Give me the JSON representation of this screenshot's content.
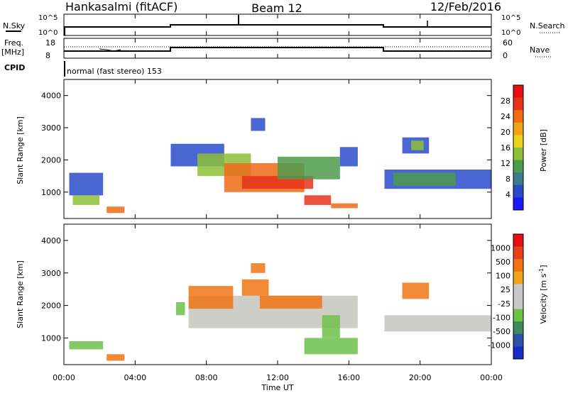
{
  "header": {
    "station": "Hankasalmi (fitACF)",
    "beam": "Beam 12",
    "date": "12/Feb/2016"
  },
  "top_panels": {
    "nsky_label": "N.Sky",
    "nsearch_label": "N.Search",
    "nsky_ticks": [
      "10^5",
      "10^0"
    ],
    "nsearch_ticks": [
      "10^5",
      "10^0"
    ],
    "freq_label": "Freq.",
    "freq_unit": "[MHz]",
    "freq_ticks": [
      "18",
      "8"
    ],
    "nave_label": "Nave",
    "nave_ticks": [
      "60",
      "0"
    ],
    "cpid_label": "CPID",
    "cpid_value": "normal (fast stereo) 153"
  },
  "chart_data": [
    {
      "type": "heatmap",
      "name": "power",
      "ylabel": "Slant Range [km]",
      "xlabel": "",
      "x_ticks": [
        "00:00",
        "04:00",
        "08:00",
        "12:00",
        "16:00",
        "20:00",
        "00:00"
      ],
      "xlim_hours": [
        0,
        24
      ],
      "ylim": [
        180,
        4500
      ],
      "y_ticks": [
        1000,
        2000,
        3000,
        4000
      ],
      "colorbar": {
        "label": "Power [dB]",
        "ticks": [
          "4",
          "8",
          "12",
          "16",
          "20",
          "24",
          "28"
        ],
        "colors": [
          "#1a1aff",
          "#2a4bc8",
          "#3f7a8c",
          "#4e9a4e",
          "#8ebf3a",
          "#e8d21e",
          "#f0a21a",
          "#ef6b16",
          "#e8321a",
          "#e60f14"
        ]
      },
      "colors": {
        "low": "#2a4bc8",
        "mid": "#4e9a4e",
        "mid2": "#8ebf3a",
        "high": "#ef6b16",
        "peak": "#e8321a"
      },
      "regions": [
        {
          "t0": 0.3,
          "t1": 2.2,
          "r0": 900,
          "r1": 1600,
          "level": "low"
        },
        {
          "t0": 0.5,
          "t1": 2.0,
          "r0": 600,
          "r1": 900,
          "level": "mid2"
        },
        {
          "t0": 2.4,
          "t1": 3.4,
          "r0": 350,
          "r1": 550,
          "level": "high"
        },
        {
          "t0": 6.0,
          "t1": 9.0,
          "r0": 1800,
          "r1": 2500,
          "level": "low"
        },
        {
          "t0": 7.5,
          "t1": 10.5,
          "r0": 1500,
          "r1": 2200,
          "level": "mid2"
        },
        {
          "t0": 9.0,
          "t1": 13.5,
          "r0": 1000,
          "r1": 1900,
          "level": "high"
        },
        {
          "t0": 10.0,
          "t1": 14.0,
          "r0": 1100,
          "r1": 1500,
          "level": "peak"
        },
        {
          "t0": 12.0,
          "t1": 15.5,
          "r0": 1400,
          "r1": 2100,
          "level": "mid"
        },
        {
          "t0": 13.5,
          "t1": 15.0,
          "r0": 600,
          "r1": 900,
          "level": "peak"
        },
        {
          "t0": 15.0,
          "t1": 16.5,
          "r0": 500,
          "r1": 650,
          "level": "high"
        },
        {
          "t0": 15.5,
          "t1": 16.5,
          "r0": 1800,
          "r1": 2400,
          "level": "low"
        },
        {
          "t0": 18.0,
          "t1": 24.0,
          "r0": 1100,
          "r1": 1700,
          "level": "low"
        },
        {
          "t0": 18.5,
          "t1": 22.0,
          "r0": 1200,
          "r1": 1600,
          "level": "mid"
        },
        {
          "t0": 10.5,
          "t1": 11.3,
          "r0": 2900,
          "r1": 3300,
          "level": "low"
        },
        {
          "t0": 19.0,
          "t1": 20.5,
          "r0": 2200,
          "r1": 2700,
          "level": "low"
        },
        {
          "t0": 19.5,
          "t1": 20.2,
          "r0": 2300,
          "r1": 2600,
          "level": "mid2"
        }
      ]
    },
    {
      "type": "heatmap",
      "name": "velocity",
      "ylabel": "Slant Range [km]",
      "xlabel": "Time UT",
      "x_ticks": [
        "00:00",
        "04:00",
        "08:00",
        "12:00",
        "16:00",
        "20:00",
        "00:00"
      ],
      "xlim_hours": [
        0,
        24
      ],
      "ylim": [
        180,
        4500
      ],
      "y_ticks": [
        1000,
        2000,
        3000,
        4000
      ],
      "colorbar": {
        "label": "Velocity [m s^-1]",
        "ticks": [
          "1000",
          "500",
          "100",
          "25",
          "-25",
          "-100",
          "-500",
          "-1000"
        ],
        "colors": [
          "#1c2bc4",
          "#2b52a8",
          "#3e8a5a",
          "#6dc04a",
          "#c8c8c8",
          "#c8c8c8",
          "#f0a21a",
          "#ef7414",
          "#e8401a",
          "#e60f14"
        ]
      },
      "colors": {
        "gray": "#c6c6c0",
        "green": "#6dc04a",
        "orange": "#ef7414",
        "blue": "#2b52a8"
      },
      "regions": [
        {
          "t0": 0.3,
          "t1": 2.2,
          "r0": 650,
          "r1": 900,
          "level": "green"
        },
        {
          "t0": 2.4,
          "t1": 3.4,
          "r0": 300,
          "r1": 500,
          "level": "orange"
        },
        {
          "t0": 7.0,
          "t1": 16.5,
          "r0": 1300,
          "r1": 2300,
          "level": "gray"
        },
        {
          "t0": 7.0,
          "t1": 9.5,
          "r0": 1900,
          "r1": 2600,
          "level": "orange"
        },
        {
          "t0": 10.0,
          "t1": 11.5,
          "r0": 2300,
          "r1": 2800,
          "level": "orange"
        },
        {
          "t0": 11.0,
          "t1": 14.5,
          "r0": 1900,
          "r1": 2300,
          "level": "orange"
        },
        {
          "t0": 13.5,
          "t1": 16.5,
          "r0": 500,
          "r1": 1000,
          "level": "green"
        },
        {
          "t0": 14.5,
          "t1": 15.5,
          "r0": 1000,
          "r1": 1700,
          "level": "green"
        },
        {
          "t0": 18.0,
          "t1": 24.0,
          "r0": 1200,
          "r1": 1700,
          "level": "gray"
        },
        {
          "t0": 10.5,
          "t1": 11.3,
          "r0": 3000,
          "r1": 3300,
          "level": "orange"
        },
        {
          "t0": 19.0,
          "t1": 20.5,
          "r0": 2200,
          "r1": 2700,
          "level": "orange"
        },
        {
          "t0": 6.3,
          "t1": 6.8,
          "r0": 1700,
          "r1": 2100,
          "level": "green"
        }
      ]
    }
  ]
}
